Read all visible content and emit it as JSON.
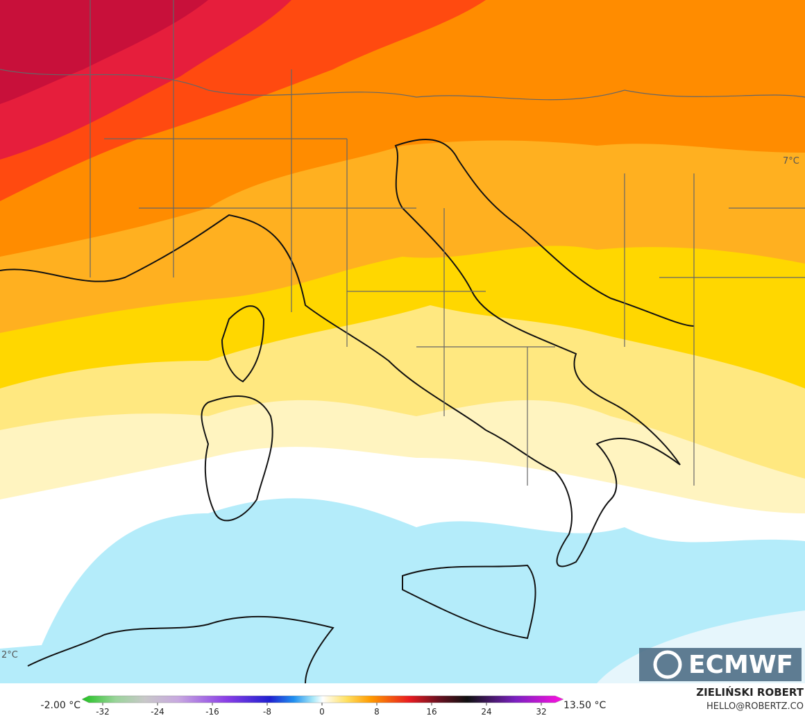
{
  "map": {
    "labels": [
      "7°C",
      "2°C"
    ]
  },
  "legend": {
    "min_label": "-2.00 °C",
    "max_label": "13.50 °C",
    "ticks": [
      -32,
      -24,
      -16,
      -8,
      0,
      8,
      16,
      24,
      32
    ]
  },
  "logo": "ECMWF",
  "credit": {
    "name": "ZIELIŃSKI ROBERT",
    "email": "HELLO@ROBERTZ.CO"
  }
}
